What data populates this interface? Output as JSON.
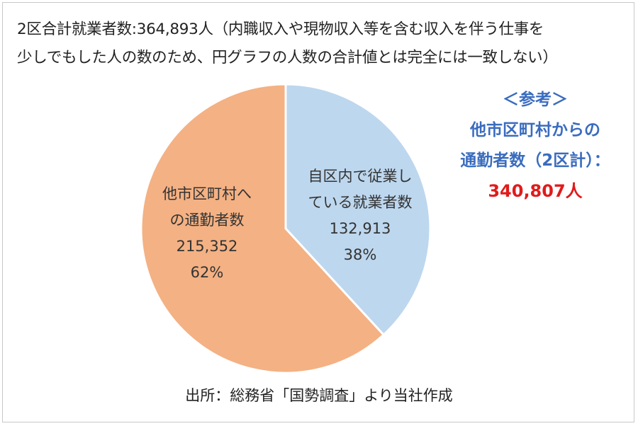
{
  "header": {
    "line1": "2区合計就業者数:364,893人（内職収入や現物収入等を含む収入を伴う仕事を",
    "line2": "少しでもした人の数のため、円グラフの人数の合計値とは完全には一致しない）"
  },
  "reference": {
    "title": "＜参考＞",
    "line1": "他市区町村からの",
    "line2": "通勤者数（2区計）：",
    "total": "340,807人"
  },
  "source": "出所：総務省「国勢調査」より当社作成",
  "colors": {
    "slice_within": "#bdd7ee",
    "slice_other": "#f4b183",
    "reference_text": "#3a6cbf",
    "reference_total": "#e01b1b"
  },
  "chart_data": {
    "type": "pie",
    "slices": [
      {
        "label_lines": [
          "自区内で従業し",
          "ている就業者数"
        ],
        "value": 132913,
        "value_label": "132,913",
        "percent_label": "38%",
        "color": "#bdd7ee"
      },
      {
        "label_lines": [
          "他市区町村へ",
          "の通勤者数"
        ],
        "value": 215352,
        "value_label": "215,352",
        "percent_label": "62%",
        "color": "#f4b183"
      }
    ]
  }
}
